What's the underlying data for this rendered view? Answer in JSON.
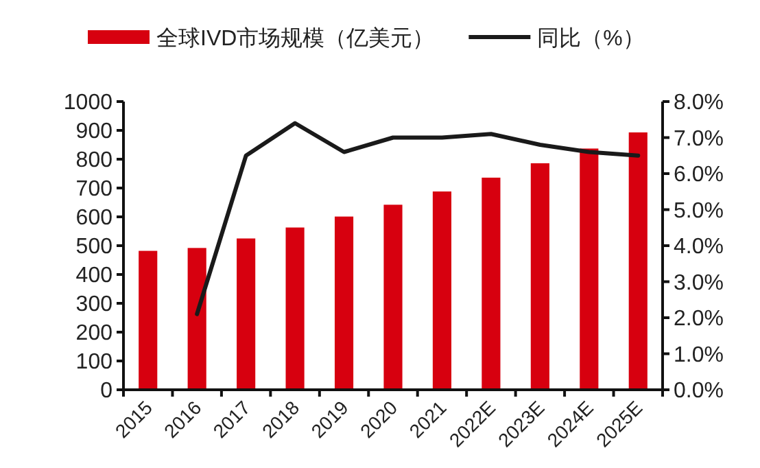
{
  "chart_data": {
    "type": "bar",
    "categories": [
      "2015",
      "2016",
      "2017",
      "2018",
      "2019",
      "2020",
      "2021",
      "2022E",
      "2023E",
      "2024E",
      "2025E"
    ],
    "series": [
      {
        "name": "全球IVD市场规模（亿美元）",
        "color": "#d7000f",
        "values": [
          482,
          492,
          525,
          563,
          601,
          642,
          688,
          736,
          786,
          837,
          893
        ]
      },
      {
        "name": "同比（%）",
        "type": "line",
        "axis": "y2",
        "color": "#1a1a1a",
        "values": [
          null,
          2.1,
          6.5,
          7.4,
          6.6,
          7.0,
          7.0,
          7.1,
          6.8,
          6.6,
          6.5
        ]
      }
    ],
    "ylim": [
      0,
      1000
    ],
    "yticks": [
      0,
      100,
      200,
      300,
      400,
      500,
      600,
      700,
      800,
      900,
      1000
    ],
    "y2lim": [
      0,
      8
    ],
    "y2ticks": [
      {
        "value": 0,
        "label": "0.0%"
      },
      {
        "value": 1,
        "label": "1.0%"
      },
      {
        "value": 2,
        "label": "2.0%"
      },
      {
        "value": 3,
        "label": "3.0%"
      },
      {
        "value": 4,
        "label": "4.0%"
      },
      {
        "value": 5,
        "label": "5.0%"
      },
      {
        "value": 6,
        "label": "6.0%"
      },
      {
        "value": 7,
        "label": "7.0%"
      },
      {
        "value": 8,
        "label": "8.0%"
      }
    ],
    "legend": "top"
  }
}
